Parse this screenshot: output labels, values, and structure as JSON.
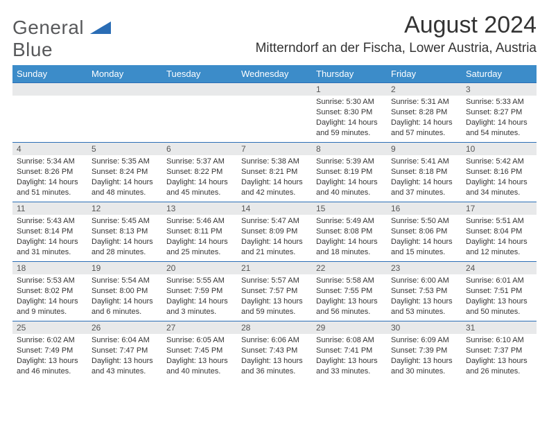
{
  "logo": {
    "word1": "General",
    "word2": "Blue"
  },
  "title": "August 2024",
  "location": "Mitterndorf an der Fischa, Lower Austria, Austria",
  "colors": {
    "header_bg": "#3c8cc9",
    "header_text": "#ffffff",
    "daynum_bg": "#e8e9ea",
    "daynum_border": "#2a6db5",
    "text": "#333333",
    "logo_gray": "#58595b",
    "logo_blue": "#2a6db5",
    "page_bg": "#ffffff"
  },
  "day_headers": [
    "Sunday",
    "Monday",
    "Tuesday",
    "Wednesday",
    "Thursday",
    "Friday",
    "Saturday"
  ],
  "weeks": [
    [
      null,
      null,
      null,
      null,
      {
        "n": "1",
        "sr": "Sunrise: 5:30 AM",
        "ss": "Sunset: 8:30 PM",
        "dl": "Daylight: 14 hours and 59 minutes."
      },
      {
        "n": "2",
        "sr": "Sunrise: 5:31 AM",
        "ss": "Sunset: 8:28 PM",
        "dl": "Daylight: 14 hours and 57 minutes."
      },
      {
        "n": "3",
        "sr": "Sunrise: 5:33 AM",
        "ss": "Sunset: 8:27 PM",
        "dl": "Daylight: 14 hours and 54 minutes."
      }
    ],
    [
      {
        "n": "4",
        "sr": "Sunrise: 5:34 AM",
        "ss": "Sunset: 8:26 PM",
        "dl": "Daylight: 14 hours and 51 minutes."
      },
      {
        "n": "5",
        "sr": "Sunrise: 5:35 AM",
        "ss": "Sunset: 8:24 PM",
        "dl": "Daylight: 14 hours and 48 minutes."
      },
      {
        "n": "6",
        "sr": "Sunrise: 5:37 AM",
        "ss": "Sunset: 8:22 PM",
        "dl": "Daylight: 14 hours and 45 minutes."
      },
      {
        "n": "7",
        "sr": "Sunrise: 5:38 AM",
        "ss": "Sunset: 8:21 PM",
        "dl": "Daylight: 14 hours and 42 minutes."
      },
      {
        "n": "8",
        "sr": "Sunrise: 5:39 AM",
        "ss": "Sunset: 8:19 PM",
        "dl": "Daylight: 14 hours and 40 minutes."
      },
      {
        "n": "9",
        "sr": "Sunrise: 5:41 AM",
        "ss": "Sunset: 8:18 PM",
        "dl": "Daylight: 14 hours and 37 minutes."
      },
      {
        "n": "10",
        "sr": "Sunrise: 5:42 AM",
        "ss": "Sunset: 8:16 PM",
        "dl": "Daylight: 14 hours and 34 minutes."
      }
    ],
    [
      {
        "n": "11",
        "sr": "Sunrise: 5:43 AM",
        "ss": "Sunset: 8:14 PM",
        "dl": "Daylight: 14 hours and 31 minutes."
      },
      {
        "n": "12",
        "sr": "Sunrise: 5:45 AM",
        "ss": "Sunset: 8:13 PM",
        "dl": "Daylight: 14 hours and 28 minutes."
      },
      {
        "n": "13",
        "sr": "Sunrise: 5:46 AM",
        "ss": "Sunset: 8:11 PM",
        "dl": "Daylight: 14 hours and 25 minutes."
      },
      {
        "n": "14",
        "sr": "Sunrise: 5:47 AM",
        "ss": "Sunset: 8:09 PM",
        "dl": "Daylight: 14 hours and 21 minutes."
      },
      {
        "n": "15",
        "sr": "Sunrise: 5:49 AM",
        "ss": "Sunset: 8:08 PM",
        "dl": "Daylight: 14 hours and 18 minutes."
      },
      {
        "n": "16",
        "sr": "Sunrise: 5:50 AM",
        "ss": "Sunset: 8:06 PM",
        "dl": "Daylight: 14 hours and 15 minutes."
      },
      {
        "n": "17",
        "sr": "Sunrise: 5:51 AM",
        "ss": "Sunset: 8:04 PM",
        "dl": "Daylight: 14 hours and 12 minutes."
      }
    ],
    [
      {
        "n": "18",
        "sr": "Sunrise: 5:53 AM",
        "ss": "Sunset: 8:02 PM",
        "dl": "Daylight: 14 hours and 9 minutes."
      },
      {
        "n": "19",
        "sr": "Sunrise: 5:54 AM",
        "ss": "Sunset: 8:00 PM",
        "dl": "Daylight: 14 hours and 6 minutes."
      },
      {
        "n": "20",
        "sr": "Sunrise: 5:55 AM",
        "ss": "Sunset: 7:59 PM",
        "dl": "Daylight: 14 hours and 3 minutes."
      },
      {
        "n": "21",
        "sr": "Sunrise: 5:57 AM",
        "ss": "Sunset: 7:57 PM",
        "dl": "Daylight: 13 hours and 59 minutes."
      },
      {
        "n": "22",
        "sr": "Sunrise: 5:58 AM",
        "ss": "Sunset: 7:55 PM",
        "dl": "Daylight: 13 hours and 56 minutes."
      },
      {
        "n": "23",
        "sr": "Sunrise: 6:00 AM",
        "ss": "Sunset: 7:53 PM",
        "dl": "Daylight: 13 hours and 53 minutes."
      },
      {
        "n": "24",
        "sr": "Sunrise: 6:01 AM",
        "ss": "Sunset: 7:51 PM",
        "dl": "Daylight: 13 hours and 50 minutes."
      }
    ],
    [
      {
        "n": "25",
        "sr": "Sunrise: 6:02 AM",
        "ss": "Sunset: 7:49 PM",
        "dl": "Daylight: 13 hours and 46 minutes."
      },
      {
        "n": "26",
        "sr": "Sunrise: 6:04 AM",
        "ss": "Sunset: 7:47 PM",
        "dl": "Daylight: 13 hours and 43 minutes."
      },
      {
        "n": "27",
        "sr": "Sunrise: 6:05 AM",
        "ss": "Sunset: 7:45 PM",
        "dl": "Daylight: 13 hours and 40 minutes."
      },
      {
        "n": "28",
        "sr": "Sunrise: 6:06 AM",
        "ss": "Sunset: 7:43 PM",
        "dl": "Daylight: 13 hours and 36 minutes."
      },
      {
        "n": "29",
        "sr": "Sunrise: 6:08 AM",
        "ss": "Sunset: 7:41 PM",
        "dl": "Daylight: 13 hours and 33 minutes."
      },
      {
        "n": "30",
        "sr": "Sunrise: 6:09 AM",
        "ss": "Sunset: 7:39 PM",
        "dl": "Daylight: 13 hours and 30 minutes."
      },
      {
        "n": "31",
        "sr": "Sunrise: 6:10 AM",
        "ss": "Sunset: 7:37 PM",
        "dl": "Daylight: 13 hours and 26 minutes."
      }
    ]
  ]
}
